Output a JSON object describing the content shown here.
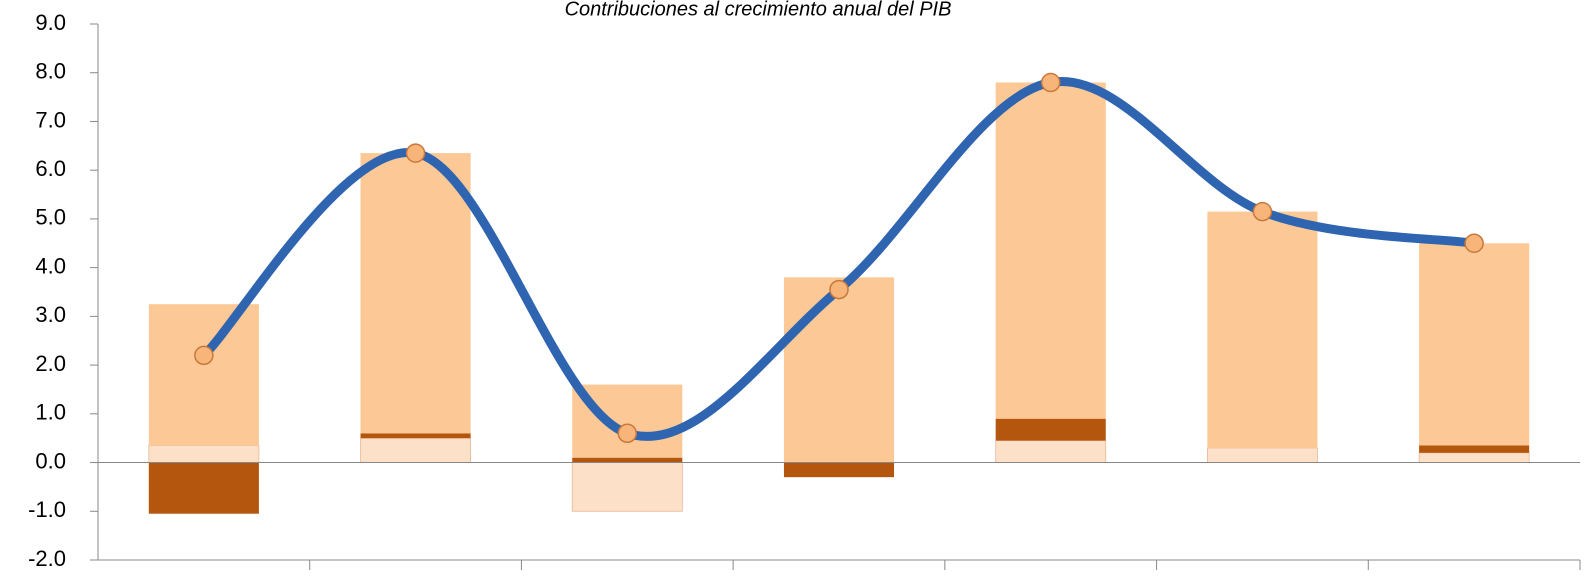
{
  "chart_data": {
    "type": "stacked_bar_line",
    "title": "Contribuciones al crecimiento anual del PIB",
    "categories": [
      null,
      null,
      null,
      null,
      null,
      null,
      null
    ],
    "series": [
      {
        "color": "#fde0c8",
        "values": [
          0.35,
          0.5,
          -1.0,
          0,
          0.45,
          0.3,
          0.2
        ]
      },
      {
        "color": "#b5560f",
        "values": [
          -1.05,
          0.1,
          0.1,
          -0.3,
          0.45,
          0,
          0.15
        ]
      },
      {
        "color": "#fbc896",
        "values": [
          2.9,
          5.75,
          1.5,
          3.8,
          6.9,
          4.85,
          4.15
        ]
      }
    ],
    "line": {
      "color": "#2e64b0",
      "marker_color": "#f7b57a",
      "values": [
        2.2,
        6.35,
        0.6,
        3.55,
        7.8,
        5.15,
        4.5
      ]
    },
    "ylim": [
      -2,
      9
    ],
    "yticks": [
      {
        "value": -2,
        "label": "-2.0"
      },
      {
        "value": -1,
        "label": "-1.0"
      },
      {
        "value": 0,
        "label": "0.0"
      },
      {
        "value": 1,
        "label": "1.0"
      },
      {
        "value": 2,
        "label": "2.0"
      },
      {
        "value": 3,
        "label": "3.0"
      },
      {
        "value": 4,
        "label": "4.0"
      },
      {
        "value": 5,
        "label": "5.0"
      },
      {
        "value": 6,
        "label": "6.0"
      },
      {
        "value": 7,
        "label": "7.0"
      },
      {
        "value": 8,
        "label": "8.0"
      },
      {
        "value": 9,
        "label": "9.0"
      }
    ],
    "negative_tick_color": "#ff0000"
  }
}
